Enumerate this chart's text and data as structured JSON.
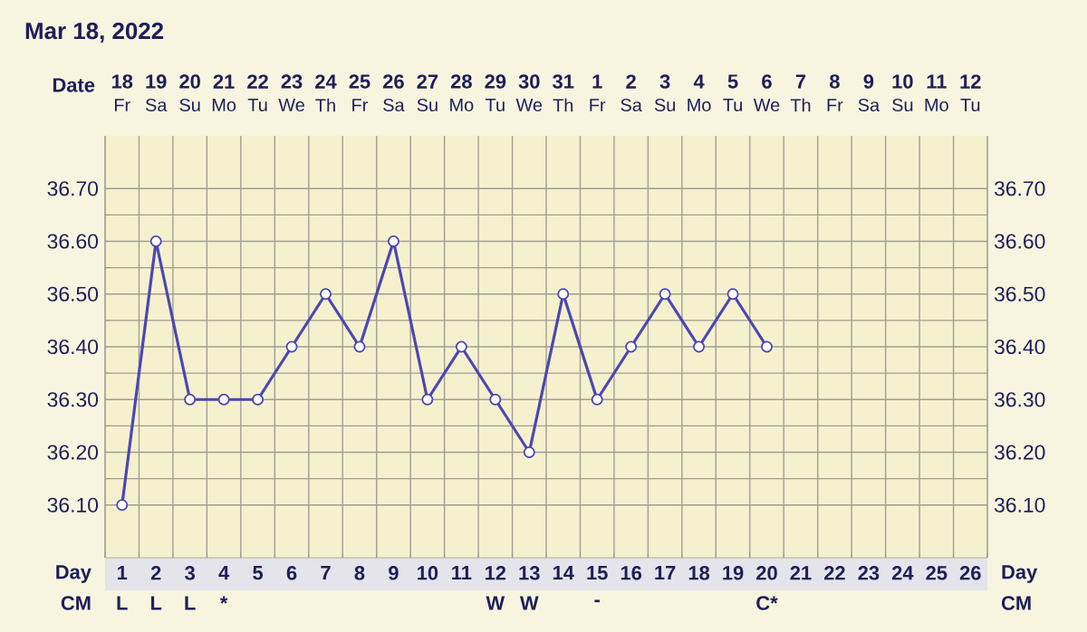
{
  "chart_data": {
    "type": "line",
    "title": "Mar 18, 2022",
    "xlabel": "Day",
    "categories": [
      "1",
      "2",
      "3",
      "4",
      "5",
      "6",
      "7",
      "8",
      "9",
      "10",
      "11",
      "12",
      "13",
      "14",
      "15",
      "16",
      "17",
      "18",
      "19",
      "20",
      "21",
      "22",
      "23",
      "24",
      "25",
      "26"
    ],
    "series": [
      {
        "color": "#4c46b4",
        "values": [
          36.1,
          36.6,
          36.3,
          36.3,
          36.3,
          36.4,
          36.5,
          36.4,
          36.6,
          36.3,
          36.4,
          36.3,
          36.2,
          36.5,
          36.3,
          36.4,
          36.5,
          36.4,
          36.5,
          36.4,
          null,
          null,
          null,
          null,
          null,
          null
        ]
      }
    ],
    "ylim": [
      36.0,
      36.8
    ],
    "yticks": [
      {
        "value": 36.1,
        "label": "36.10"
      },
      {
        "value": 36.2,
        "label": "36.20"
      },
      {
        "value": 36.3,
        "label": "36.30"
      },
      {
        "value": 36.4,
        "label": "36.40"
      },
      {
        "value": 36.5,
        "label": "36.50"
      },
      {
        "value": 36.6,
        "label": "36.60"
      },
      {
        "value": 36.7,
        "label": "36.70"
      }
    ],
    "y2lim": [
      36.0,
      36.8
    ],
    "y2ticks": [
      {
        "value": 36.1,
        "label": "36.10"
      },
      {
        "value": 36.2,
        "label": "36.20"
      },
      {
        "value": 36.3,
        "label": "36.30"
      },
      {
        "value": 36.4,
        "label": "36.40"
      },
      {
        "value": 36.5,
        "label": "36.50"
      },
      {
        "value": 36.6,
        "label": "36.60"
      },
      {
        "value": 36.7,
        "label": "36.70"
      }
    ],
    "annotations": [
      "Date",
      "18",
      "19",
      "20",
      "21",
      "22",
      "23",
      "24",
      "25",
      "26",
      "27",
      "28",
      "29",
      "30",
      "31",
      "1",
      "2",
      "3",
      "4",
      "5",
      "6",
      "7",
      "8",
      "9",
      "10",
      "11",
      "12",
      "Fr",
      "Sa",
      "Su",
      "Mo",
      "Tu",
      "We",
      "Th",
      "Fr",
      "Sa",
      "Su",
      "Mo",
      "Tu",
      "We",
      "Th",
      "Fr",
      "Sa",
      "Su",
      "Mo",
      "Tu",
      "We",
      "Th",
      "Fr",
      "Sa",
      "Su",
      "Mo",
      "Tu",
      "CM",
      "L",
      "L",
      "L",
      "*",
      "W",
      "W",
      "-",
      "C*"
    ],
    "grid": true,
    "marker": "circle",
    "line_style": "solid"
  }
}
